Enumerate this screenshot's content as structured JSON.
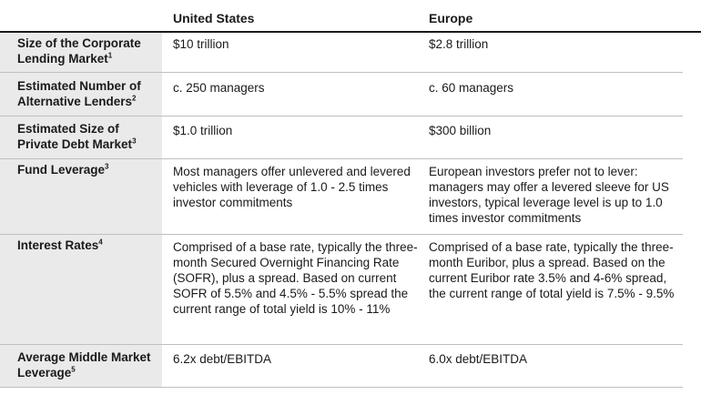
{
  "header": {
    "col_us": "United States",
    "col_eu": "Europe"
  },
  "rows": [
    {
      "label_main": "Size of the Corporate Lending Market",
      "label_sup": "1",
      "us": "$10 trillion",
      "eu": "$2.8 trillion"
    },
    {
      "label_main": "Estimated Number of Alternative Lenders",
      "label_sup": "2",
      "us": "c. 250 managers",
      "eu": "c. 60 managers"
    },
    {
      "label_main": "Estimated Size of Private Debt Market",
      "label_sup": "3",
      "us": "$1.0 trillion",
      "eu": "$300 billion"
    },
    {
      "label_main": "Fund Leverage",
      "label_sup": "3",
      "us": "Most managers offer unlevered and levered vehicles with leverage of 1.0 - 2.5 times investor commitments",
      "eu": "European investors prefer not to lever: managers may offer a levered sleeve for US investors, typical leverage level is up to 1.0 times investor commitments"
    },
    {
      "label_main": "Interest Rates",
      "label_sup": "4",
      "us": "Comprised of a base rate, typically the three-month Secured Overnight Financing Rate (SOFR), plus a spread. Based on current SOFR of 5.5% and 4.5% - 5.5% spread the current range of total yield is 10% - 11%",
      "eu": "Comprised of a base rate, typically the three-month Euribor, plus a spread. Based on the current Euribor rate 3.5% and 4-6% spread, the current range of total yield is 7.5% - 9.5%"
    },
    {
      "label_main": "Average Middle Market Leverage",
      "label_sup": "5",
      "us": "6.2x debt/EBITDA",
      "eu": "6.0x debt/EBITDA"
    }
  ]
}
